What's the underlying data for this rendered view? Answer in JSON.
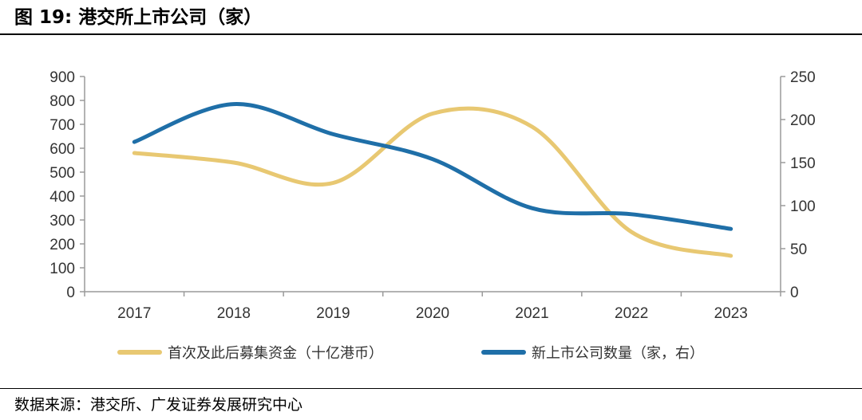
{
  "figure": {
    "title": "图 19: 港交所上市公司（家）",
    "source": "数据来源：港交所、广发证券发展研究中心"
  },
  "chart_data": {
    "type": "line",
    "title": "图 19: 港交所上市公司（家）",
    "x": [
      "2017",
      "2018",
      "2019",
      "2020",
      "2021",
      "2022",
      "2023"
    ],
    "left_axis": {
      "min": 0,
      "max": 900,
      "ticks": [
        0,
        100,
        200,
        300,
        400,
        500,
        600,
        700,
        800,
        900
      ]
    },
    "right_axis": {
      "min": 0,
      "max": 250,
      "ticks": [
        0,
        50,
        100,
        150,
        200,
        250
      ]
    },
    "grid": false,
    "legend_position": "bottom",
    "series": [
      {
        "name": "首次及此后募集资金（十亿港币）",
        "axis": "left",
        "color": "#E8C872",
        "values": [
          580,
          540,
          455,
          745,
          690,
          250,
          150
        ]
      },
      {
        "name": "新上市公司数量（家，右）",
        "axis": "right",
        "color": "#1F6FA8",
        "values": [
          174,
          218,
          183,
          154,
          97,
          90,
          73
        ]
      }
    ]
  }
}
